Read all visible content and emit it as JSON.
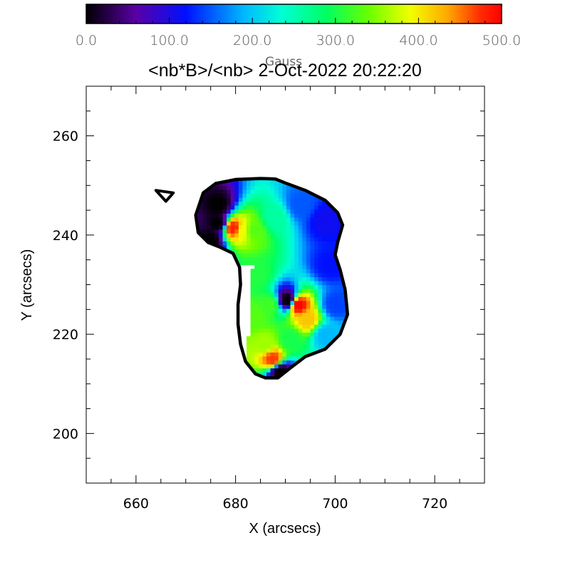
{
  "chart_data": {
    "type": "heatmap",
    "title": "<nb*B>/<nb>  2-Oct-2022  20:22:20",
    "xlabel": "X (arcsecs)",
    "ylabel": "Y (arcsecs)",
    "xlim": [
      650,
      730
    ],
    "ylim": [
      190,
      270
    ],
    "xticks": [
      660,
      680,
      700,
      720
    ],
    "yticks": [
      200,
      220,
      240,
      260
    ],
    "grid": false,
    "colorbar": {
      "label": "Gauss",
      "range": [
        0,
        500
      ],
      "ticks": [
        "0.0",
        "100.0",
        "200.0",
        "300.0",
        "400.0",
        "500.0"
      ],
      "colormap": "rainbow",
      "placement": "top"
    },
    "contour_main": [
      [
        673.5,
        248.5
      ],
      [
        676,
        250.4
      ],
      [
        680,
        251.2
      ],
      [
        685,
        251.4
      ],
      [
        688,
        251.3
      ],
      [
        690,
        250.5
      ],
      [
        694,
        249
      ],
      [
        698,
        247
      ],
      [
        700.5,
        244.5
      ],
      [
        701.5,
        242
      ],
      [
        700.5,
        238.5
      ],
      [
        700,
        236
      ],
      [
        701,
        233
      ],
      [
        702,
        229
      ],
      [
        702.5,
        224
      ],
      [
        701,
        220
      ],
      [
        698,
        217
      ],
      [
        694,
        215.5
      ],
      [
        691,
        213.2
      ],
      [
        688.5,
        211.2
      ],
      [
        686,
        211.2
      ],
      [
        684,
        212
      ],
      [
        682,
        214.5
      ],
      [
        681,
        218
      ],
      [
        680.5,
        222
      ],
      [
        680.5,
        226
      ],
      [
        681,
        230
      ],
      [
        680.8,
        233.5
      ],
      [
        679.5,
        236.3
      ],
      [
        677,
        237.5
      ],
      [
        674.5,
        238.5
      ],
      [
        672.5,
        240.5
      ],
      [
        672,
        244
      ],
      [
        673.5,
        248.5
      ]
    ],
    "contour_small": [
      [
        664,
        249
      ],
      [
        667.5,
        248.5
      ],
      [
        666,
        246.8
      ],
      [
        664,
        249
      ]
    ],
    "field_samples": [
      {
        "x": 676.5,
        "y": 242.5,
        "v": 0
      },
      {
        "x": 676.5,
        "y": 246,
        "v": 0
      },
      {
        "x": 675,
        "y": 239,
        "v": 0
      },
      {
        "x": 679.5,
        "y": 241.5,
        "v": 480
      },
      {
        "x": 681.5,
        "y": 241,
        "v": 390
      },
      {
        "x": 683.5,
        "y": 241,
        "v": 330
      },
      {
        "x": 688,
        "y": 243.5,
        "v": 260
      },
      {
        "x": 693,
        "y": 246,
        "v": 150
      },
      {
        "x": 698,
        "y": 243,
        "v": 110
      },
      {
        "x": 699,
        "y": 234,
        "v": 120
      },
      {
        "x": 700,
        "y": 226,
        "v": 140
      },
      {
        "x": 698,
        "y": 220,
        "v": 190
      },
      {
        "x": 692.5,
        "y": 226,
        "v": 500
      },
      {
        "x": 690.5,
        "y": 227,
        "v": 0
      },
      {
        "x": 694.5,
        "y": 223,
        "v": 420
      },
      {
        "x": 687,
        "y": 226,
        "v": 320
      },
      {
        "x": 684,
        "y": 232,
        "v": 305
      },
      {
        "x": 684,
        "y": 224,
        "v": 330
      },
      {
        "x": 686,
        "y": 218,
        "v": 360
      },
      {
        "x": 687.5,
        "y": 215,
        "v": 470
      },
      {
        "x": 689,
        "y": 212.5,
        "v": 0
      },
      {
        "x": 691,
        "y": 219,
        "v": 300
      }
    ]
  }
}
